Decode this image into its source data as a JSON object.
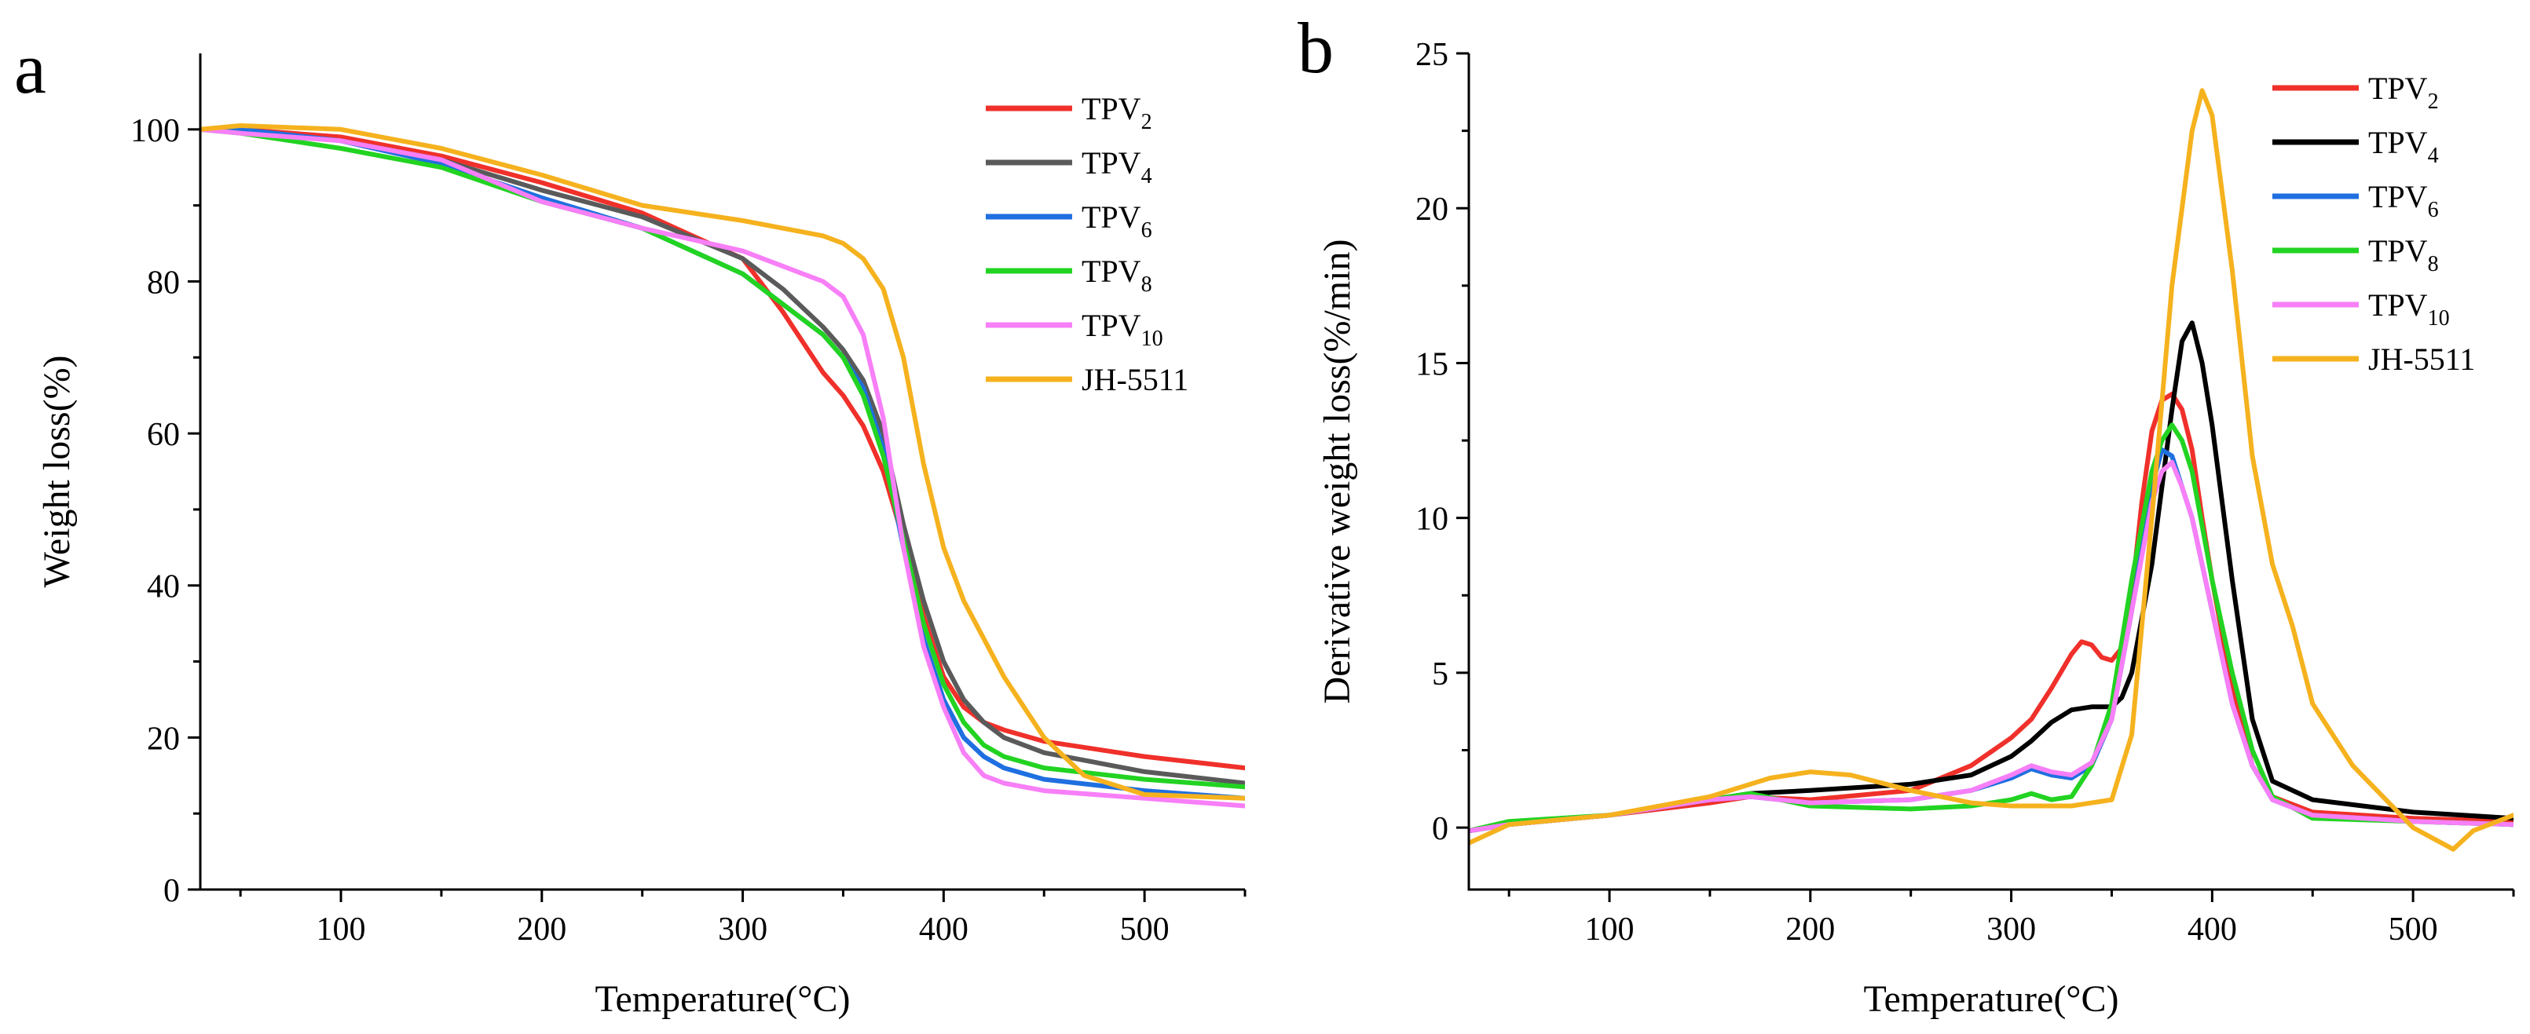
{
  "colors": {
    "TPV2": "#f0302a",
    "TPV4": "#5a5a5a",
    "TPV6": "#1f6fe0",
    "TPV8": "#22d322",
    "TPV10": "#f77ff7",
    "JH5511": "#f5b21e",
    "axis": "#000000",
    "TPV4_dtg": "#000000"
  },
  "chart_data": [
    {
      "type": "line",
      "panel_label": "a",
      "xlabel": "Temperature(°C)",
      "ylabel": "Weight loss(%)",
      "xlim": [
        30,
        550
      ],
      "ylim": [
        0,
        110
      ],
      "xticks": [
        100,
        200,
        300,
        400,
        500
      ],
      "xtick_labels": [
        "100",
        "200",
        "300",
        "400",
        "500"
      ],
      "yticks": [
        0,
        20,
        40,
        60,
        80,
        100
      ],
      "ytick_labels": [
        "0",
        "20",
        "40",
        "60",
        "80",
        "100"
      ],
      "legend_position": "top-right",
      "series": [
        {
          "name": "TPV2",
          "label": "TPV",
          "sub": "2",
          "color_key": "TPV2",
          "x": [
            30,
            50,
            100,
            150,
            200,
            250,
            300,
            320,
            340,
            350,
            360,
            370,
            380,
            390,
            400,
            410,
            420,
            430,
            450,
            500,
            550
          ],
          "y": [
            100,
            100,
            99,
            96.5,
            93,
            89,
            83,
            76,
            68,
            65,
            61,
            55,
            46,
            36,
            28,
            24,
            22,
            21,
            19.5,
            17.5,
            16
          ]
        },
        {
          "name": "TPV4",
          "label": "TPV",
          "sub": "4",
          "color_key": "TPV4",
          "x": [
            30,
            50,
            100,
            150,
            200,
            250,
            300,
            320,
            340,
            350,
            360,
            370,
            380,
            390,
            400,
            410,
            420,
            430,
            450,
            500,
            550
          ],
          "y": [
            100,
            100,
            98.5,
            96,
            92,
            88.5,
            83,
            79,
            74,
            71,
            67,
            60,
            48,
            38,
            30,
            25,
            22,
            20,
            18,
            15.5,
            14
          ]
        },
        {
          "name": "TPV6",
          "label": "TPV",
          "sub": "6",
          "color_key": "TPV6",
          "x": [
            30,
            50,
            100,
            150,
            200,
            250,
            300,
            320,
            340,
            350,
            360,
            370,
            380,
            390,
            400,
            410,
            420,
            430,
            450,
            500,
            550
          ],
          "y": [
            100,
            100,
            98.5,
            95.5,
            91,
            87,
            81,
            77,
            73,
            70,
            66,
            58,
            45,
            33,
            25,
            20,
            17.5,
            16,
            14.5,
            13,
            12
          ]
        },
        {
          "name": "TPV8",
          "label": "TPV",
          "sub": "8",
          "color_key": "TPV8",
          "x": [
            30,
            50,
            100,
            150,
            200,
            250,
            300,
            320,
            340,
            350,
            360,
            370,
            380,
            390,
            400,
            410,
            420,
            430,
            450,
            500,
            550
          ],
          "y": [
            100,
            99.5,
            97.5,
            95,
            90.5,
            87,
            81,
            77,
            73,
            70,
            65,
            57,
            46,
            35,
            27,
            22,
            19,
            17.5,
            16,
            14.5,
            13.5
          ]
        },
        {
          "name": "TPV10",
          "label": "TPV",
          "sub": "10",
          "color_key": "TPV10",
          "x": [
            30,
            50,
            100,
            150,
            200,
            250,
            300,
            320,
            340,
            350,
            360,
            370,
            380,
            390,
            400,
            410,
            420,
            430,
            450,
            500,
            550
          ],
          "y": [
            100,
            99.5,
            98.5,
            96,
            90.5,
            87,
            84,
            82,
            80,
            78,
            73,
            62,
            45,
            32,
            24,
            18,
            15,
            14,
            13,
            12,
            11
          ]
        },
        {
          "name": "JH-5511",
          "label": "JH-5511",
          "sub": "",
          "color_key": "JH5511",
          "x": [
            30,
            50,
            100,
            150,
            200,
            250,
            300,
            320,
            340,
            350,
            360,
            370,
            380,
            390,
            400,
            410,
            420,
            430,
            450,
            470,
            500,
            550
          ],
          "y": [
            100,
            100.5,
            100,
            97.5,
            94,
            90,
            88,
            87,
            86,
            85,
            83,
            79,
            70,
            56,
            45,
            38,
            33,
            28,
            20,
            15,
            12.5,
            12
          ]
        }
      ]
    },
    {
      "type": "line",
      "panel_label": "b",
      "xlabel": "Temperature(°C)",
      "ylabel": "Derivative weight loss(%/min)",
      "xlim": [
        30,
        550
      ],
      "ylim": [
        -2,
        25
      ],
      "xticks": [
        100,
        200,
        300,
        400,
        500
      ],
      "xtick_labels": [
        "100",
        "200",
        "300",
        "400",
        "500"
      ],
      "yticks": [
        0,
        5,
        10,
        15,
        20,
        25
      ],
      "ytick_labels": [
        "0",
        "5",
        "10",
        "15",
        "20",
        "25"
      ],
      "legend_position": "top-right",
      "series": [
        {
          "name": "TPV2",
          "label": "TPV",
          "sub": "2",
          "color_key": "TPV2",
          "x": [
            30,
            50,
            100,
            150,
            170,
            200,
            250,
            280,
            300,
            310,
            320,
            330,
            335,
            340,
            345,
            350,
            355,
            360,
            365,
            370,
            375,
            380,
            385,
            390,
            395,
            400,
            410,
            420,
            430,
            450,
            500,
            550
          ],
          "y": [
            -0.1,
            0.1,
            0.4,
            0.8,
            1.0,
            0.9,
            1.2,
            2.0,
            2.9,
            3.5,
            4.5,
            5.6,
            6.0,
            5.9,
            5.5,
            5.4,
            5.8,
            7.5,
            10.5,
            12.8,
            13.8,
            14.0,
            13.5,
            12.2,
            10.0,
            8.0,
            4.5,
            2.0,
            1.0,
            0.5,
            0.3,
            0.2
          ]
        },
        {
          "name": "TPV4",
          "label": "TPV",
          "sub": "4",
          "color_key": "TPV4_dtg",
          "x": [
            30,
            50,
            100,
            150,
            170,
            200,
            250,
            280,
            300,
            310,
            320,
            330,
            340,
            350,
            355,
            360,
            370,
            380,
            385,
            390,
            395,
            400,
            410,
            420,
            430,
            450,
            500,
            550
          ],
          "y": [
            -0.1,
            0.1,
            0.4,
            0.9,
            1.1,
            1.2,
            1.4,
            1.7,
            2.3,
            2.8,
            3.4,
            3.8,
            3.9,
            3.9,
            4.2,
            5.0,
            8.5,
            13.5,
            15.7,
            16.3,
            15.0,
            13.0,
            8.0,
            3.5,
            1.5,
            0.9,
            0.5,
            0.3
          ]
        },
        {
          "name": "TPV6",
          "label": "TPV",
          "sub": "6",
          "color_key": "TPV6",
          "x": [
            30,
            50,
            100,
            150,
            170,
            200,
            250,
            280,
            300,
            310,
            320,
            330,
            340,
            350,
            360,
            370,
            375,
            380,
            385,
            390,
            400,
            410,
            420,
            430,
            450,
            500,
            550
          ],
          "y": [
            -0.1,
            0.1,
            0.4,
            0.9,
            1.0,
            0.8,
            0.9,
            1.2,
            1.6,
            1.9,
            1.7,
            1.6,
            2.0,
            3.5,
            7.0,
            11.0,
            12.2,
            12.0,
            11.0,
            10.0,
            7.0,
            4.0,
            2.0,
            0.9,
            0.4,
            0.2,
            0.1
          ]
        },
        {
          "name": "TPV8",
          "label": "TPV",
          "sub": "8",
          "color_key": "TPV8",
          "x": [
            30,
            50,
            100,
            150,
            170,
            200,
            250,
            280,
            300,
            310,
            320,
            330,
            340,
            350,
            360,
            370,
            375,
            380,
            385,
            390,
            400,
            410,
            420,
            430,
            450,
            500,
            550
          ],
          "y": [
            -0.1,
            0.2,
            0.4,
            0.9,
            1.1,
            0.7,
            0.6,
            0.7,
            0.9,
            1.1,
            0.9,
            1.0,
            2.0,
            4.0,
            8.0,
            11.5,
            12.5,
            13.0,
            12.5,
            11.5,
            8.0,
            5.0,
            2.5,
            1.0,
            0.3,
            0.2,
            0.1
          ]
        },
        {
          "name": "TPV10",
          "label": "TPV",
          "sub": "10",
          "color_key": "TPV10",
          "x": [
            30,
            50,
            100,
            150,
            170,
            200,
            250,
            280,
            300,
            310,
            320,
            330,
            340,
            350,
            360,
            370,
            375,
            380,
            385,
            390,
            400,
            410,
            420,
            430,
            450,
            500,
            550
          ],
          "y": [
            -0.1,
            0.1,
            0.4,
            0.9,
            1.0,
            0.8,
            0.9,
            1.2,
            1.7,
            2.0,
            1.8,
            1.7,
            2.1,
            3.5,
            7.0,
            10.5,
            11.5,
            11.8,
            11.0,
            10.0,
            7.0,
            4.0,
            2.0,
            0.9,
            0.4,
            0.2,
            0.1
          ]
        },
        {
          "name": "JH-5511",
          "label": "JH-5511",
          "sub": "",
          "color_key": "JH5511",
          "x": [
            30,
            50,
            100,
            150,
            180,
            200,
            220,
            250,
            280,
            300,
            330,
            350,
            360,
            370,
            380,
            390,
            395,
            400,
            410,
            420,
            430,
            440,
            450,
            470,
            500,
            520,
            530,
            550
          ],
          "y": [
            -0.5,
            0.1,
            0.4,
            1.0,
            1.6,
            1.8,
            1.7,
            1.2,
            0.8,
            0.7,
            0.7,
            0.9,
            3.0,
            10.0,
            17.5,
            22.5,
            23.8,
            23.0,
            18.0,
            12.0,
            8.5,
            6.5,
            4.0,
            2.0,
            0.0,
            -0.7,
            -0.1,
            0.4
          ]
        }
      ]
    }
  ]
}
